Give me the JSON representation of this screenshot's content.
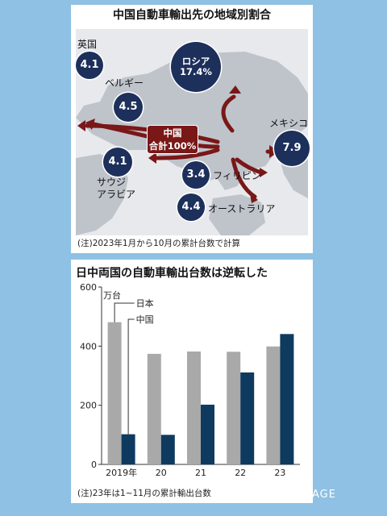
{
  "map_panel": {
    "title": "中国自動車輸出先の地域別割合",
    "origin": {
      "line1": "中国",
      "line2": "合計100%"
    },
    "destinations": [
      {
        "name": "英国",
        "value": "4.1"
      },
      {
        "name": "ベルギー",
        "value": "4.5"
      },
      {
        "name": "ロシア",
        "value": "17.4%"
      },
      {
        "name": "メキシコ",
        "value": "7.9"
      },
      {
        "name_line1": "サウジ",
        "name_line2": "アラビア",
        "value": "4.1"
      },
      {
        "name": "フィリピン",
        "value": "3.4"
      },
      {
        "name": "オーストラリア",
        "value": "4.4"
      }
    ],
    "note": "(注)2023年1月から10月の累計台数で計算",
    "colors": {
      "bubble": "#1d2f5b",
      "arrow": "#7a1717"
    }
  },
  "chart_data": {
    "type": "bar",
    "title": "日中両国の自動車輸出台数は逆転した",
    "ylabel": "万台",
    "categories": [
      "2019年",
      "20",
      "21",
      "22",
      "23"
    ],
    "series": [
      {
        "name": "日本",
        "color": "#a9a9a9",
        "values": [
          481,
          374,
          382,
          381,
          399
        ]
      },
      {
        "name": "中国",
        "color": "#0f3a5f",
        "values": [
          102,
          100,
          202,
          311,
          441
        ]
      }
    ],
    "ylim": [
      0,
      600
    ],
    "yticks": [
      "0",
      "200",
      "400",
      "600"
    ],
    "note": "(注)23年は1~11月の累計輸出台数"
  },
  "watermark": "PIC·COLLAGE"
}
